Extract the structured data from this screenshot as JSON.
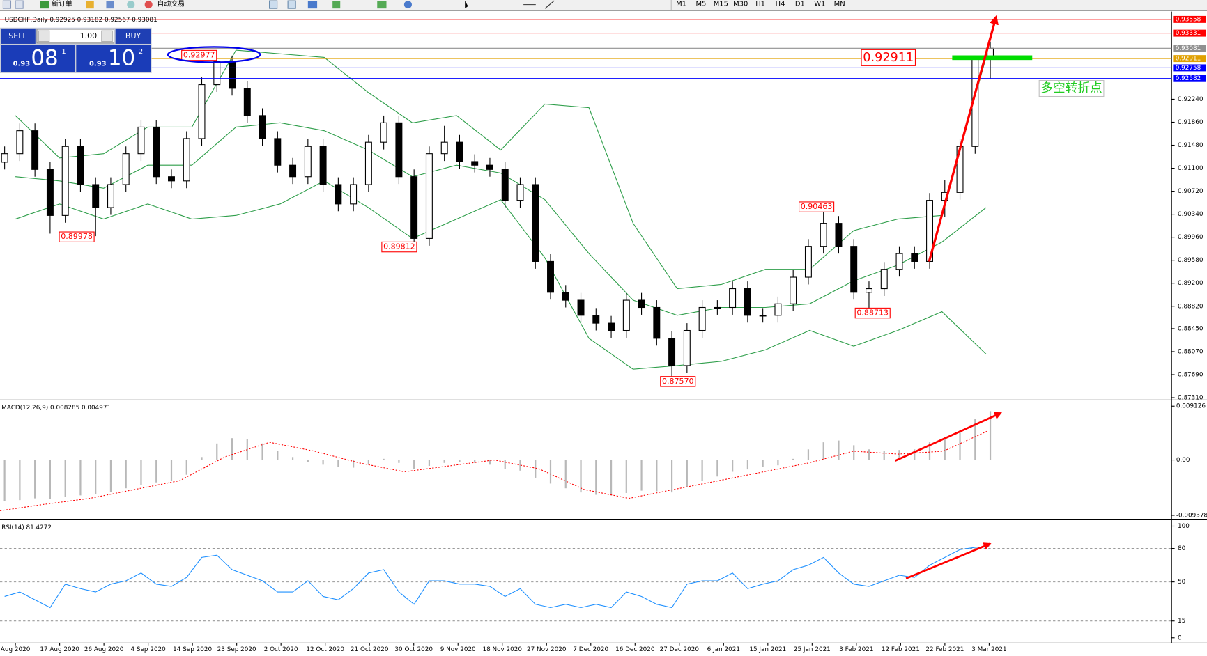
{
  "toolbar": {
    "new_order": "新订单",
    "auto_trading": "自动交易",
    "timeframes": [
      "M1",
      "M5",
      "M15",
      "M30",
      "H1",
      "H4",
      "D1",
      "W1",
      "MN"
    ]
  },
  "trade_panel": {
    "sell": "SELL",
    "lots": "1.00",
    "buy": "BUY",
    "bid_big": "0.93",
    "bid_pips": "08",
    "bid_frac": "1",
    "ask_big": "0.93",
    "ask_pips": "10",
    "ask_frac": "2"
  },
  "chart_data": [
    {
      "type": "candlestick",
      "title": "USDCHF,Daily 0.92925 0.93182 0.92567 0.93081",
      "open": [
        0.912,
        0.9134,
        0.9172,
        0.9108,
        0.9032,
        0.9146,
        0.9083,
        0.9045,
        0.9083,
        0.9134,
        0.9178,
        0.9096,
        0.9089,
        0.9159,
        0.9248,
        0.9286,
        0.9242,
        0.9197,
        0.9159,
        0.9115,
        0.9096,
        0.9146,
        0.9083,
        0.9051,
        0.9083,
        0.9153,
        0.9185,
        0.9096,
        0.8994,
        0.9134,
        0.9153,
        0.9121,
        0.9115,
        0.9108,
        0.9057,
        0.9083,
        0.8956,
        0.8905,
        0.8892,
        0.8867,
        0.8854,
        0.8842,
        0.8892,
        0.888,
        0.8829,
        0.8784,
        0.8842,
        0.888,
        0.888,
        0.8911,
        0.8867,
        0.8867,
        0.8886,
        0.893,
        0.8981,
        0.9019,
        0.8981,
        0.8905,
        0.8911,
        0.8943,
        0.8969,
        0.8956,
        0.9057,
        0.907,
        0.9146,
        0.92925
      ],
      "high": [
        0.9146,
        0.9184,
        0.9184,
        0.912,
        0.9158,
        0.9158,
        0.9095,
        0.9095,
        0.9146,
        0.919,
        0.919,
        0.9108,
        0.9171,
        0.926,
        0.92977,
        0.9296,
        0.9254,
        0.9209,
        0.9171,
        0.9127,
        0.9158,
        0.9158,
        0.9095,
        0.9095,
        0.9165,
        0.9197,
        0.9197,
        0.9108,
        0.9146,
        0.918,
        0.9165,
        0.9133,
        0.9127,
        0.912,
        0.9095,
        0.9095,
        0.8968,
        0.8917,
        0.8904,
        0.8879,
        0.8866,
        0.8904,
        0.8904,
        0.8892,
        0.8841,
        0.8854,
        0.8892,
        0.8892,
        0.8923,
        0.8923,
        0.8879,
        0.8898,
        0.8942,
        0.8993,
        0.90463,
        0.9031,
        0.8993,
        0.8923,
        0.8955,
        0.8981,
        0.8981,
        0.9069,
        0.909,
        0.9158,
        0.9296,
        0.93182
      ],
      "low": [
        0.9108,
        0.9122,
        0.9096,
        0.9002,
        0.902,
        0.9071,
        0.89978,
        0.9033,
        0.9071,
        0.9122,
        0.9084,
        0.9077,
        0.9077,
        0.9147,
        0.9236,
        0.923,
        0.9185,
        0.9147,
        0.9103,
        0.9084,
        0.9084,
        0.9071,
        0.9039,
        0.9039,
        0.9071,
        0.9141,
        0.9084,
        0.89812,
        0.8982,
        0.9122,
        0.9109,
        0.9103,
        0.9096,
        0.9045,
        0.9045,
        0.8944,
        0.8893,
        0.888,
        0.8855,
        0.8842,
        0.883,
        0.883,
        0.8868,
        0.8817,
        0.8757,
        0.8772,
        0.883,
        0.8868,
        0.8868,
        0.8855,
        0.8855,
        0.8855,
        0.8874,
        0.8918,
        0.8969,
        0.8969,
        0.8893,
        0.88713,
        0.8899,
        0.8931,
        0.8944,
        0.8944,
        0.903,
        0.9058,
        0.9134,
        0.92567
      ],
      "close": [
        0.9134,
        0.9172,
        0.9108,
        0.9032,
        0.9146,
        0.9083,
        0.9045,
        0.9083,
        0.9134,
        0.9178,
        0.9096,
        0.9089,
        0.9159,
        0.9248,
        0.9286,
        0.9242,
        0.9197,
        0.9159,
        0.9115,
        0.9096,
        0.9146,
        0.9083,
        0.9051,
        0.9083,
        0.9153,
        0.9185,
        0.9096,
        0.8994,
        0.9134,
        0.9153,
        0.9121,
        0.9115,
        0.9108,
        0.9057,
        0.9083,
        0.8956,
        0.8905,
        0.8892,
        0.8867,
        0.8854,
        0.8842,
        0.8892,
        0.888,
        0.8829,
        0.8784,
        0.8842,
        0.888,
        0.888,
        0.8911,
        0.8867,
        0.8867,
        0.8886,
        0.893,
        0.8981,
        0.9019,
        0.8981,
        0.8905,
        0.8911,
        0.8943,
        0.8969,
        0.8956,
        0.9057,
        0.907,
        0.9146,
        0.9292,
        0.93081
      ],
      "up_color": "#ffffff",
      "down_color": "#000000",
      "bands": {
        "color": "#2e9e4a",
        "upper": [
          0.9197,
          0.9127,
          0.9134,
          0.9178,
          0.9178,
          0.9305,
          0.9299,
          0.9293,
          0.9235,
          0.9185,
          0.9197,
          0.914,
          0.9216,
          0.921,
          0.9019,
          0.8911,
          0.8918,
          0.8943,
          0.8943,
          0.9007,
          0.9026,
          0.9032,
          0.9293
        ],
        "middle": [
          0.9096,
          0.9089,
          0.9077,
          0.9115,
          0.9115,
          0.9178,
          0.9185,
          0.9172,
          0.914,
          0.9096,
          0.9115,
          0.9102,
          0.9058,
          0.8969,
          0.8892,
          0.8867,
          0.888,
          0.888,
          0.8886,
          0.8924,
          0.895,
          0.8988,
          0.9045
        ],
        "lower": [
          0.9026,
          0.9051,
          0.9026,
          0.9051,
          0.9026,
          0.9032,
          0.9051,
          0.9089,
          0.9045,
          0.8994,
          0.9026,
          0.9058,
          0.8962,
          0.8829,
          0.8778,
          0.8784,
          0.8791,
          0.881,
          0.8842,
          0.8816,
          0.8842,
          0.8873,
          0.8803
        ]
      },
      "levels": [
        {
          "value": 0.93558,
          "color": "#ff0000"
        },
        {
          "value": 0.93331,
          "color": "#ff0000"
        },
        {
          "value": 0.93081,
          "color": "#909090"
        },
        {
          "value": 0.92911,
          "color": "#e0a000"
        },
        {
          "value": 0.92758,
          "color": "#0000ff"
        },
        {
          "value": 0.92582,
          "color": "#0000ff"
        }
      ],
      "ylim": [
        0.87284,
        0.9365
      ],
      "yticks": [
        {
          "value": 0.9224,
          "label": "0.92240"
        },
        {
          "value": 0.9186,
          "label": "0.91860"
        },
        {
          "value": 0.9148,
          "label": "0.91480"
        },
        {
          "value": 0.911,
          "label": "0.91100"
        },
        {
          "value": 0.9072,
          "label": "0.90720"
        },
        {
          "value": 0.9034,
          "label": "0.90340"
        },
        {
          "value": 0.8996,
          "label": "0.89960"
        },
        {
          "value": 0.8958,
          "label": "0.89580"
        },
        {
          "value": 0.892,
          "label": "0.89200"
        },
        {
          "value": 0.8882,
          "label": "0.88820"
        },
        {
          "value": 0.8845,
          "label": "0.88450"
        },
        {
          "value": 0.8807,
          "label": "0.88070"
        },
        {
          "value": 0.8769,
          "label": "0.87690"
        },
        {
          "value": 0.8731,
          "label": "0.87310"
        }
      ],
      "annotations": [
        "0.92977",
        "0.89978",
        "0.89812",
        "0.87570",
        "0.90463",
        "0.88713",
        "0.92911",
        "多空转折点"
      ]
    },
    {
      "type": "macd",
      "title": "MACD(12,26,9) 0.008285 0.004971",
      "histogram": {
        "color": "#b8b8b8",
        "values": [
          -0.007,
          -0.0068,
          -0.0065,
          -0.0066,
          -0.0062,
          -0.006,
          -0.0058,
          -0.0054,
          -0.0048,
          -0.0042,
          -0.0038,
          -0.0035,
          -0.0025,
          0.0005,
          0.0028,
          0.0037,
          0.0035,
          0.0028,
          0.0015,
          0.0005,
          -0.0003,
          -0.0008,
          -0.0012,
          -0.0013,
          -0.0008,
          0.0002,
          -0.0005,
          -0.0015,
          -0.001,
          -0.0005,
          -0.0004,
          -0.0005,
          -0.0008,
          -0.0015,
          -0.0018,
          -0.003,
          -0.004,
          -0.0048,
          -0.0055,
          -0.0059,
          -0.006,
          -0.0056,
          -0.0052,
          -0.0053,
          -0.0055,
          -0.0045,
          -0.0036,
          -0.0028,
          -0.002,
          -0.0016,
          -0.0012,
          -0.0009,
          0.0002,
          0.0018,
          0.003,
          0.0033,
          0.0025,
          0.0018,
          0.0016,
          0.0017,
          0.0018,
          0.003,
          0.0038,
          0.005,
          0.007,
          0.008285
        ]
      },
      "signal": {
        "color": "#ff0000",
        "values": [
          -0.0086,
          -0.0075,
          -0.0065,
          -0.005,
          -0.0035,
          0.0005,
          0.003,
          0.0015,
          -0.0005,
          -0.002,
          -0.001,
          0.0,
          -0.0015,
          -0.005,
          -0.0065,
          -0.005,
          -0.0035,
          -0.002,
          -0.0005,
          0.0015,
          0.001,
          0.0015,
          0.004971
        ]
      },
      "ylim": [
        -0.00978,
        0.01004
      ],
      "yticks": [
        0.009126,
        {
          "value": 0,
          "label": "0.00"
        },
        -0.009378
      ]
    },
    {
      "type": "rsi",
      "title": "RSI(14) 81.4272",
      "color": "#1e90ff",
      "values": [
        37,
        41,
        34,
        27,
        48,
        44,
        41,
        48,
        51,
        58,
        48,
        46,
        54,
        72,
        74,
        61,
        56,
        51,
        41,
        41,
        51,
        37,
        34,
        44,
        58,
        61,
        41,
        30,
        51,
        51,
        48,
        48,
        46,
        37,
        44,
        30,
        27,
        30,
        27,
        30,
        27,
        41,
        37,
        30,
        27,
        48,
        51,
        51,
        58,
        44,
        48,
        51,
        61,
        65,
        72,
        58,
        48,
        46,
        51,
        56,
        54,
        65,
        72,
        79,
        81,
        81.4272
      ],
      "ylim": [
        -4.1,
        104.8
      ],
      "yticks": [
        100,
        80,
        50,
        15,
        0
      ],
      "xticks": [
        "Aug 2020",
        "17 Aug 2020",
        "26 Aug 2020",
        "4 Sep 2020",
        "14 Sep 2020",
        "23 Sep 2020",
        "2 Oct 2020",
        "12 Oct 2020",
        "21 Oct 2020",
        "30 Oct 2020",
        "9 Nov 2020",
        "18 Nov 2020",
        "27 Nov 2020",
        "7 Dec 2020",
        "16 Dec 2020",
        "27 Dec 2020",
        "6 Jan 2021",
        "15 Jan 2021",
        "25 Jan 2021",
        "3 Feb 2021",
        "12 Feb 2021",
        "22 Feb 2021",
        "3 Mar 2021"
      ]
    }
  ]
}
